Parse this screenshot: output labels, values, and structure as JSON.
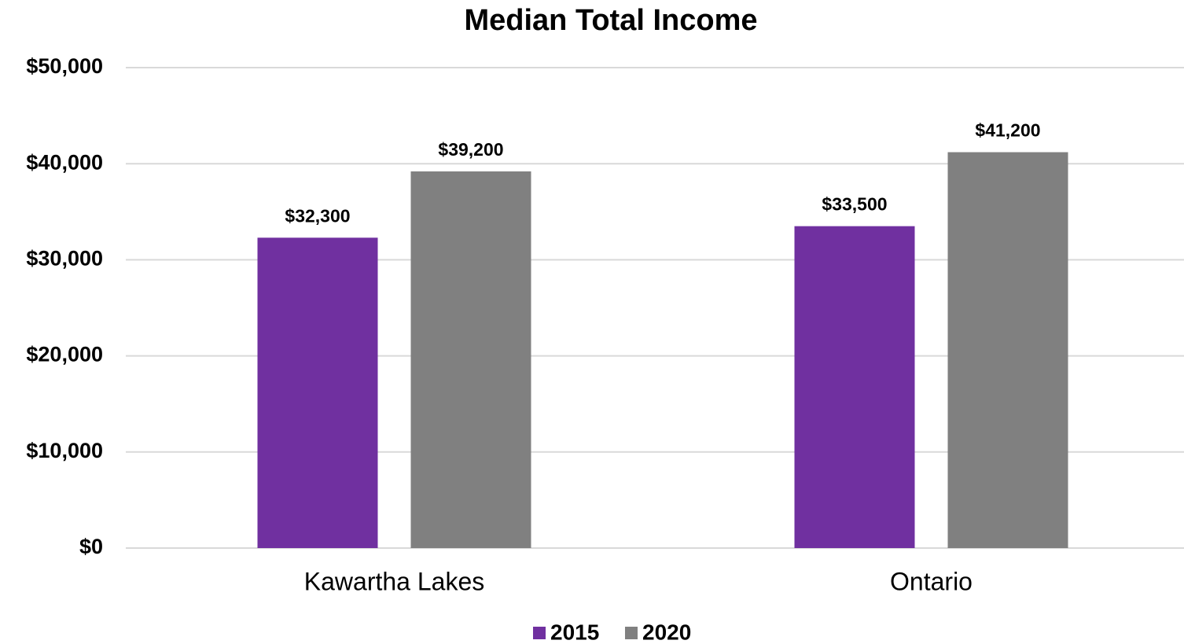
{
  "chart_data": {
    "type": "bar",
    "title": "Median Total Income",
    "categories": [
      "Kawartha Lakes",
      "Ontario"
    ],
    "series": [
      {
        "name": "2015",
        "color": "#7030a0",
        "values": [
          32300,
          33500
        ],
        "value_labels": [
          "$32,300",
          "$33,500"
        ]
      },
      {
        "name": "2020",
        "color": "#808080",
        "values": [
          39200,
          41200
        ],
        "value_labels": [
          "$39,200",
          "$41,200"
        ]
      }
    ],
    "ylim": [
      0,
      50000
    ],
    "yticks": [
      {
        "value": 0,
        "label": "$0"
      },
      {
        "value": 10000,
        "label": "$10,000"
      },
      {
        "value": 20000,
        "label": "$20,000"
      },
      {
        "value": 30000,
        "label": "$30,000"
      },
      {
        "value": 40000,
        "label": "$40,000"
      },
      {
        "value": 50000,
        "label": "$50,000"
      }
    ],
    "grid": true,
    "legend": "bottom"
  }
}
